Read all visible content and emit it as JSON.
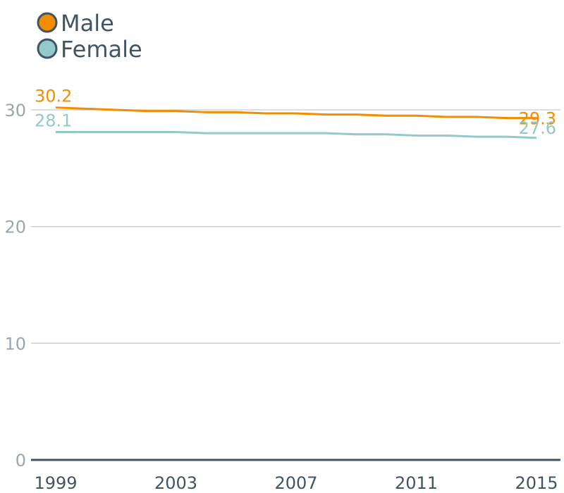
{
  "chart_data": {
    "type": "line",
    "x": [
      1999,
      2000,
      2001,
      2002,
      2003,
      2004,
      2005,
      2006,
      2007,
      2008,
      2009,
      2010,
      2011,
      2012,
      2013,
      2014,
      2015
    ],
    "xticks": [
      "1999",
      "2003",
      "2007",
      "2011",
      "2015"
    ],
    "ylim": [
      0,
      30
    ],
    "yticks": [
      0,
      10,
      20,
      30
    ],
    "grid": true,
    "legend_position": "top-left",
    "series": [
      {
        "name": "Male",
        "color": "#f28c00",
        "values": [
          30.2,
          30.1,
          30.0,
          29.9,
          29.9,
          29.8,
          29.8,
          29.7,
          29.7,
          29.6,
          29.6,
          29.5,
          29.5,
          29.4,
          29.4,
          29.3,
          29.3
        ],
        "start_label": "30.2",
        "end_label": "29.3"
      },
      {
        "name": "Female",
        "color": "#93c9c8",
        "values": [
          28.1,
          28.1,
          28.1,
          28.1,
          28.1,
          28.0,
          28.0,
          28.0,
          28.0,
          28.0,
          27.9,
          27.9,
          27.8,
          27.8,
          27.7,
          27.7,
          27.6
        ],
        "start_label": "28.1",
        "end_label": "27.6"
      }
    ]
  }
}
